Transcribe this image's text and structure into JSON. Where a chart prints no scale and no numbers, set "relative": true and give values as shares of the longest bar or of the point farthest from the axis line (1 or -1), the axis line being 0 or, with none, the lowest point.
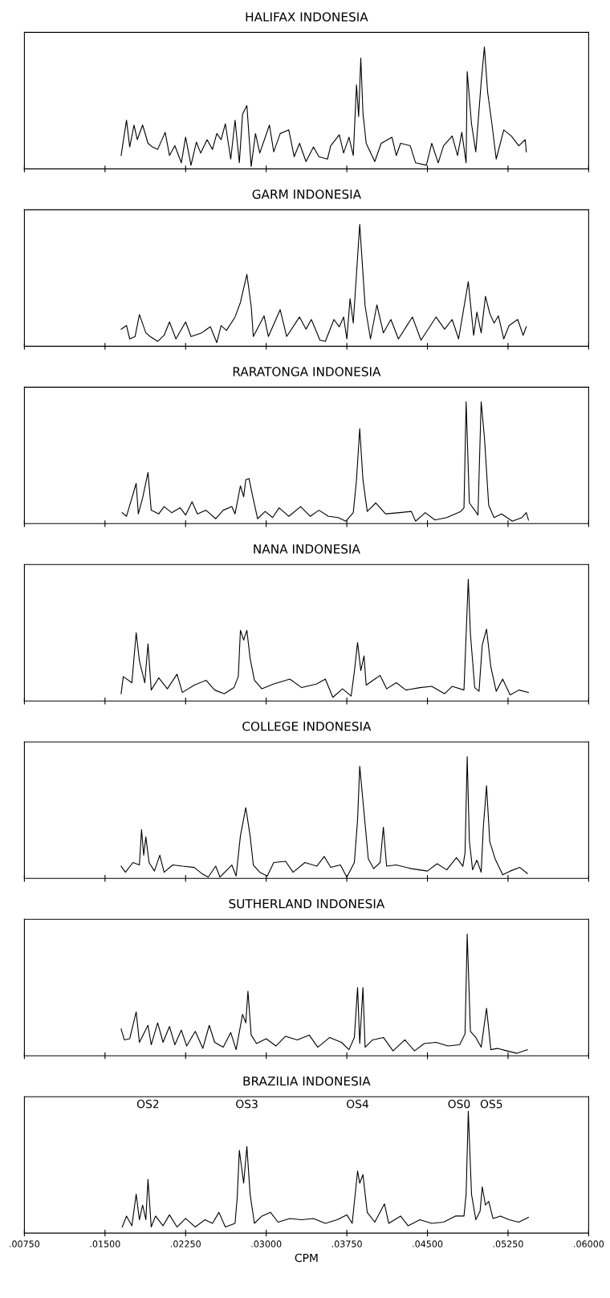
{
  "chart_data": [
    {
      "type": "line",
      "title": "HALIFAX INDONESIA",
      "relative": true,
      "tick_labels": false,
      "xlim": [
        0.0075,
        0.06
      ],
      "xticks": [
        {
          "value": 0.0075,
          "label": null
        },
        {
          "value": 0.015,
          "label": null
        },
        {
          "value": 0.0225,
          "label": null
        },
        {
          "value": 0.03,
          "label": null
        },
        {
          "value": 0.0375,
          "label": null
        },
        {
          "value": 0.045,
          "label": null
        },
        {
          "value": 0.0525,
          "label": null
        },
        {
          "value": 0.06,
          "label": null
        }
      ],
      "series": [
        {
          "color": "#000000",
          "x": [
            0.0165,
            0.017,
            0.0173,
            0.0177,
            0.018,
            0.0185,
            0.019,
            0.0194,
            0.0199,
            0.0206,
            0.021,
            0.0215,
            0.0221,
            0.0225,
            0.023,
            0.0235,
            0.0239,
            0.0245,
            0.025,
            0.0254,
            0.0258,
            0.0262,
            0.0267,
            0.0271,
            0.0275,
            0.0278,
            0.0282,
            0.0286,
            0.029,
            0.0294,
            0.0303,
            0.0307,
            0.0313,
            0.0321,
            0.0326,
            0.0331,
            0.0337,
            0.0344,
            0.0349,
            0.0357,
            0.036,
            0.0368,
            0.0372,
            0.0377,
            0.0381,
            0.0384,
            0.0386,
            0.0388,
            0.039,
            0.0393,
            0.0401,
            0.0407,
            0.0417,
            0.0421,
            0.0425,
            0.0434,
            0.0439,
            0.0449,
            0.0454,
            0.046,
            0.0465,
            0.0473,
            0.0478,
            0.0482,
            0.0486,
            0.0487,
            0.0491,
            0.0495,
            0.05,
            0.0503,
            0.0506,
            0.051,
            0.0514,
            0.0521,
            0.0528,
            0.0535,
            0.0541,
            0.0542
          ],
          "values": [
            0.11,
            0.4,
            0.18,
            0.36,
            0.24,
            0.36,
            0.21,
            0.18,
            0.16,
            0.3,
            0.11,
            0.19,
            0.05,
            0.26,
            0.03,
            0.22,
            0.13,
            0.24,
            0.16,
            0.29,
            0.24,
            0.37,
            0.08,
            0.4,
            0.05,
            0.45,
            0.52,
            0.02,
            0.29,
            0.13,
            0.36,
            0.14,
            0.29,
            0.32,
            0.1,
            0.21,
            0.06,
            0.18,
            0.1,
            0.08,
            0.19,
            0.28,
            0.13,
            0.26,
            0.11,
            0.69,
            0.43,
            0.91,
            0.46,
            0.21,
            0.06,
            0.21,
            0.26,
            0.11,
            0.21,
            0.19,
            0.05,
            0.03,
            0.21,
            0.05,
            0.19,
            0.27,
            0.11,
            0.3,
            0.05,
            0.8,
            0.37,
            0.14,
            0.71,
            1.0,
            0.63,
            0.37,
            0.08,
            0.32,
            0.27,
            0.19,
            0.24,
            0.14
          ]
        }
      ]
    },
    {
      "type": "line",
      "title": "GARM INDONESIA",
      "relative": true,
      "tick_labels": false,
      "xlim": [
        0.0075,
        0.06
      ],
      "xticks": [
        {
          "value": 0.0075,
          "label": null
        },
        {
          "value": 0.015,
          "label": null
        },
        {
          "value": 0.0225,
          "label": null
        },
        {
          "value": 0.03,
          "label": null
        },
        {
          "value": 0.0375,
          "label": null
        },
        {
          "value": 0.045,
          "label": null
        },
        {
          "value": 0.0525,
          "label": null
        },
        {
          "value": 0.06,
          "label": null
        }
      ],
      "series": [
        {
          "color": "#000000",
          "x": [
            0.0165,
            0.017,
            0.0173,
            0.0178,
            0.0182,
            0.0188,
            0.0192,
            0.0199,
            0.0205,
            0.021,
            0.0216,
            0.0225,
            0.023,
            0.024,
            0.0248,
            0.0254,
            0.0258,
            0.0263,
            0.0271,
            0.0276,
            0.0282,
            0.0286,
            0.0288,
            0.0298,
            0.0302,
            0.0313,
            0.0319,
            0.0331,
            0.0337,
            0.0342,
            0.035,
            0.0355,
            0.0363,
            0.0368,
            0.0372,
            0.0375,
            0.0378,
            0.0381,
            0.0387,
            0.0392,
            0.0397,
            0.0403,
            0.0409,
            0.0416,
            0.0423,
            0.0436,
            0.0444,
            0.0458,
            0.0466,
            0.0473,
            0.0479,
            0.0488,
            0.0493,
            0.0496,
            0.05,
            0.0504,
            0.0508,
            0.0512,
            0.0516,
            0.0521,
            0.0526,
            0.0534,
            0.0539,
            0.0542
          ],
          "values": [
            0.14,
            0.17,
            0.06,
            0.08,
            0.26,
            0.11,
            0.08,
            0.04,
            0.09,
            0.2,
            0.06,
            0.2,
            0.08,
            0.11,
            0.16,
            0.03,
            0.17,
            0.13,
            0.24,
            0.36,
            0.59,
            0.33,
            0.08,
            0.25,
            0.08,
            0.3,
            0.08,
            0.24,
            0.14,
            0.22,
            0.05,
            0.04,
            0.22,
            0.16,
            0.24,
            0.06,
            0.39,
            0.19,
            1.0,
            0.33,
            0.06,
            0.34,
            0.11,
            0.22,
            0.06,
            0.24,
            0.05,
            0.24,
            0.14,
            0.22,
            0.06,
            0.53,
            0.09,
            0.28,
            0.11,
            0.41,
            0.27,
            0.19,
            0.25,
            0.06,
            0.17,
            0.22,
            0.09,
            0.16
          ]
        }
      ]
    },
    {
      "type": "line",
      "title": "RARATONGA INDONESIA",
      "relative": true,
      "tick_labels": false,
      "xlim": [
        0.0075,
        0.06
      ],
      "xticks": [
        {
          "value": 0.0075,
          "label": null
        },
        {
          "value": 0.015,
          "label": null
        },
        {
          "value": 0.0225,
          "label": null
        },
        {
          "value": 0.03,
          "label": null
        },
        {
          "value": 0.0375,
          "label": null
        },
        {
          "value": 0.045,
          "label": null
        },
        {
          "value": 0.0525,
          "label": null
        },
        {
          "value": 0.06,
          "label": null
        }
      ],
      "series": [
        {
          "color": "#000000",
          "x": [
            0.0166,
            0.017,
            0.0179,
            0.0181,
            0.0185,
            0.019,
            0.0193,
            0.02,
            0.0205,
            0.0212,
            0.022,
            0.0225,
            0.0231,
            0.0236,
            0.0244,
            0.0253,
            0.026,
            0.0268,
            0.0271,
            0.0276,
            0.0279,
            0.0281,
            0.0284,
            0.0287,
            0.0292,
            0.0299,
            0.0306,
            0.0312,
            0.0321,
            0.0332,
            0.0341,
            0.0349,
            0.0358,
            0.0367,
            0.0374,
            0.0381,
            0.0384,
            0.0387,
            0.039,
            0.0394,
            0.0402,
            0.0411,
            0.0424,
            0.0435,
            0.0439,
            0.0448,
            0.0457,
            0.0468,
            0.0481,
            0.0484,
            0.0486,
            0.0489,
            0.0494,
            0.0497,
            0.05,
            0.0503,
            0.0507,
            0.0512,
            0.0519,
            0.0529,
            0.0538,
            0.0542,
            0.0544
          ],
          "values": [
            0.09,
            0.06,
            0.33,
            0.08,
            0.21,
            0.42,
            0.11,
            0.08,
            0.14,
            0.09,
            0.13,
            0.07,
            0.18,
            0.08,
            0.11,
            0.04,
            0.11,
            0.14,
            0.08,
            0.31,
            0.22,
            0.36,
            0.37,
            0.24,
            0.04,
            0.1,
            0.05,
            0.13,
            0.06,
            0.14,
            0.06,
            0.11,
            0.06,
            0.05,
            0.02,
            0.09,
            0.36,
            0.78,
            0.36,
            0.1,
            0.17,
            0.08,
            0.09,
            0.1,
            0.02,
            0.09,
            0.03,
            0.05,
            0.1,
            0.13,
            1.0,
            0.17,
            0.11,
            0.07,
            1.0,
            0.71,
            0.15,
            0.05,
            0.08,
            0.02,
            0.05,
            0.09,
            0.03
          ]
        }
      ]
    },
    {
      "type": "line",
      "title": "NANA INDONESIA",
      "relative": true,
      "tick_labels": false,
      "xlim": [
        0.0075,
        0.06
      ],
      "xticks": [
        {
          "value": 0.0075,
          "label": null
        },
        {
          "value": 0.015,
          "label": null
        },
        {
          "value": 0.0225,
          "label": null
        },
        {
          "value": 0.03,
          "label": null
        },
        {
          "value": 0.0375,
          "label": null
        },
        {
          "value": 0.045,
          "label": null
        },
        {
          "value": 0.0525,
          "label": null
        },
        {
          "value": 0.06,
          "label": null
        }
      ],
      "series": [
        {
          "color": "#000000",
          "x": [
            0.0165,
            0.0167,
            0.0175,
            0.0179,
            0.0182,
            0.0187,
            0.019,
            0.0193,
            0.02,
            0.0208,
            0.0217,
            0.0222,
            0.0233,
            0.0244,
            0.0252,
            0.0261,
            0.027,
            0.0274,
            0.0276,
            0.0279,
            0.0282,
            0.0285,
            0.0289,
            0.0296,
            0.0307,
            0.0322,
            0.0333,
            0.0347,
            0.0355,
            0.0362,
            0.0371,
            0.0379,
            0.0382,
            0.0385,
            0.0388,
            0.0391,
            0.0393,
            0.0401,
            0.0406,
            0.0412,
            0.0421,
            0.043,
            0.0443,
            0.0454,
            0.0466,
            0.0473,
            0.0484,
            0.0488,
            0.049,
            0.0494,
            0.0498,
            0.0501,
            0.0505,
            0.0509,
            0.0514,
            0.052,
            0.0527,
            0.0535,
            0.0544
          ],
          "values": [
            0.06,
            0.2,
            0.15,
            0.56,
            0.33,
            0.15,
            0.47,
            0.09,
            0.19,
            0.1,
            0.22,
            0.07,
            0.13,
            0.17,
            0.09,
            0.06,
            0.11,
            0.2,
            0.58,
            0.5,
            0.58,
            0.35,
            0.17,
            0.1,
            0.14,
            0.18,
            0.11,
            0.14,
            0.18,
            0.03,
            0.1,
            0.04,
            0.24,
            0.48,
            0.25,
            0.37,
            0.13,
            0.18,
            0.21,
            0.1,
            0.15,
            0.09,
            0.11,
            0.12,
            0.06,
            0.12,
            0.09,
            1.0,
            0.55,
            0.11,
            0.08,
            0.46,
            0.59,
            0.28,
            0.08,
            0.18,
            0.05,
            0.09,
            0.07
          ]
        }
      ]
    },
    {
      "type": "line",
      "title": "COLLEGE INDONESIA",
      "relative": true,
      "tick_labels": false,
      "xlim": [
        0.0075,
        0.06
      ],
      "xticks": [
        {
          "value": 0.0075,
          "label": null
        },
        {
          "value": 0.015,
          "label": null
        },
        {
          "value": 0.0225,
          "label": null
        },
        {
          "value": 0.03,
          "label": null
        },
        {
          "value": 0.0375,
          "label": null
        },
        {
          "value": 0.045,
          "label": null
        },
        {
          "value": 0.0525,
          "label": null
        },
        {
          "value": 0.06,
          "label": null
        }
      ],
      "series": [
        {
          "color": "#000000",
          "x": [
            0.0165,
            0.0169,
            0.0176,
            0.0182,
            0.0184,
            0.0186,
            0.0188,
            0.0191,
            0.0196,
            0.0201,
            0.0205,
            0.0213,
            0.0222,
            0.0233,
            0.024,
            0.0246,
            0.0253,
            0.0257,
            0.0268,
            0.0272,
            0.0276,
            0.0281,
            0.0285,
            0.0288,
            0.0294,
            0.0301,
            0.0307,
            0.0318,
            0.0325,
            0.0336,
            0.0347,
            0.0354,
            0.036,
            0.0369,
            0.0375,
            0.0382,
            0.0385,
            0.0387,
            0.0391,
            0.0395,
            0.04,
            0.0406,
            0.0409,
            0.0412,
            0.0421,
            0.0435,
            0.045,
            0.0459,
            0.0468,
            0.0477,
            0.0483,
            0.0485,
            0.0487,
            0.0489,
            0.0492,
            0.0496,
            0.05,
            0.0502,
            0.0505,
            0.0508,
            0.0513,
            0.052,
            0.0527,
            0.0536,
            0.0543
          ],
          "values": [
            0.1,
            0.05,
            0.13,
            0.11,
            0.4,
            0.19,
            0.34,
            0.13,
            0.06,
            0.19,
            0.05,
            0.11,
            0.1,
            0.09,
            0.04,
            0.01,
            0.1,
            0.01,
            0.11,
            0.02,
            0.35,
            0.58,
            0.35,
            0.11,
            0.05,
            0.02,
            0.13,
            0.14,
            0.05,
            0.13,
            0.1,
            0.18,
            0.09,
            0.11,
            0.01,
            0.13,
            0.48,
            0.92,
            0.54,
            0.16,
            0.08,
            0.13,
            0.42,
            0.1,
            0.11,
            0.08,
            0.06,
            0.12,
            0.07,
            0.17,
            0.1,
            0.21,
            1.0,
            0.31,
            0.07,
            0.15,
            0.05,
            0.42,
            0.76,
            0.3,
            0.16,
            0.03,
            0.06,
            0.09,
            0.04
          ]
        }
      ]
    },
    {
      "type": "line",
      "title": "SUTHERLAND INDONESIA",
      "relative": true,
      "tick_labels": false,
      "xlim": [
        0.0075,
        0.06
      ],
      "xticks": [
        {
          "value": 0.0075,
          "label": null
        },
        {
          "value": 0.015,
          "label": null
        },
        {
          "value": 0.0225,
          "label": null
        },
        {
          "value": 0.03,
          "label": null
        },
        {
          "value": 0.0375,
          "label": null
        },
        {
          "value": 0.045,
          "label": null
        },
        {
          "value": 0.0525,
          "label": null
        },
        {
          "value": 0.06,
          "label": null
        }
      ],
      "series": [
        {
          "color": "#000000",
          "x": [
            0.0165,
            0.0168,
            0.0173,
            0.0179,
            0.0182,
            0.019,
            0.0193,
            0.0199,
            0.0204,
            0.021,
            0.0215,
            0.0221,
            0.0226,
            0.0234,
            0.0241,
            0.0247,
            0.0252,
            0.026,
            0.0267,
            0.0272,
            0.0278,
            0.0281,
            0.0283,
            0.0286,
            0.0291,
            0.03,
            0.0309,
            0.0318,
            0.0329,
            0.034,
            0.0348,
            0.0359,
            0.037,
            0.0377,
            0.0382,
            0.0385,
            0.0387,
            0.039,
            0.0392,
            0.0399,
            0.0409,
            0.0418,
            0.0429,
            0.0438,
            0.0447,
            0.0458,
            0.0469,
            0.048,
            0.0485,
            0.0487,
            0.049,
            0.0495,
            0.05,
            0.0505,
            0.0509,
            0.0515,
            0.0524,
            0.0533,
            0.0543
          ],
          "values": [
            0.22,
            0.13,
            0.14,
            0.36,
            0.11,
            0.25,
            0.09,
            0.27,
            0.11,
            0.24,
            0.09,
            0.21,
            0.08,
            0.2,
            0.06,
            0.25,
            0.11,
            0.07,
            0.19,
            0.05,
            0.34,
            0.27,
            0.53,
            0.17,
            0.1,
            0.14,
            0.08,
            0.16,
            0.13,
            0.17,
            0.07,
            0.15,
            0.11,
            0.05,
            0.15,
            0.56,
            0.1,
            0.56,
            0.07,
            0.13,
            0.15,
            0.04,
            0.13,
            0.04,
            0.1,
            0.11,
            0.08,
            0.09,
            0.18,
            1.0,
            0.2,
            0.15,
            0.07,
            0.39,
            0.05,
            0.06,
            0.04,
            0.02,
            0.05
          ]
        }
      ]
    },
    {
      "type": "line",
      "title": "BRAZILIA INDONESIA",
      "xlabel": "CPM",
      "relative": true,
      "tick_labels": "x",
      "xlim": [
        0.0075,
        0.06
      ],
      "xticks": [
        {
          "value": 0.0075,
          "label": ".00750"
        },
        {
          "value": 0.015,
          "label": ".01500"
        },
        {
          "value": 0.0225,
          "label": ".02250"
        },
        {
          "value": 0.03,
          "label": ".03000"
        },
        {
          "value": 0.0375,
          "label": ".03750"
        },
        {
          "value": 0.045,
          "label": ".04500"
        },
        {
          "value": 0.0525,
          "label": ".05250"
        },
        {
          "value": 0.06,
          "label": ".06000"
        }
      ],
      "annotations": [
        "OS2",
        "OS3",
        "OS4",
        "OS0",
        "OS5"
      ],
      "series": [
        {
          "color": "#000000",
          "x": [
            0.0166,
            0.017,
            0.0175,
            0.0179,
            0.0182,
            0.0185,
            0.0188,
            0.019,
            0.0193,
            0.0197,
            0.0204,
            0.021,
            0.0217,
            0.0225,
            0.0234,
            0.0243,
            0.025,
            0.0256,
            0.0262,
            0.0271,
            0.0273,
            0.0275,
            0.0279,
            0.0282,
            0.0285,
            0.0289,
            0.0296,
            0.0304,
            0.0311,
            0.0322,
            0.0333,
            0.0344,
            0.0355,
            0.0366,
            0.0375,
            0.038,
            0.0385,
            0.0387,
            0.039,
            0.0394,
            0.0401,
            0.041,
            0.0414,
            0.0425,
            0.0432,
            0.0443,
            0.0454,
            0.0465,
            0.0476,
            0.0484,
            0.0486,
            0.0488,
            0.0491,
            0.0495,
            0.0499,
            0.0501,
            0.0504,
            0.0507,
            0.0511,
            0.0518,
            0.0526,
            0.0535,
            0.0544
          ],
          "values": [
            0.05,
            0.14,
            0.06,
            0.32,
            0.11,
            0.23,
            0.11,
            0.44,
            0.05,
            0.14,
            0.06,
            0.15,
            0.05,
            0.12,
            0.05,
            0.11,
            0.08,
            0.17,
            0.05,
            0.08,
            0.29,
            0.68,
            0.41,
            0.71,
            0.32,
            0.08,
            0.14,
            0.17,
            0.09,
            0.12,
            0.11,
            0.12,
            0.08,
            0.11,
            0.15,
            0.08,
            0.51,
            0.41,
            0.48,
            0.17,
            0.09,
            0.24,
            0.08,
            0.14,
            0.06,
            0.11,
            0.08,
            0.09,
            0.14,
            0.14,
            0.32,
            1.0,
            0.32,
            0.11,
            0.18,
            0.38,
            0.23,
            0.26,
            0.12,
            0.14,
            0.11,
            0.09,
            0.13
          ]
        }
      ]
    }
  ]
}
